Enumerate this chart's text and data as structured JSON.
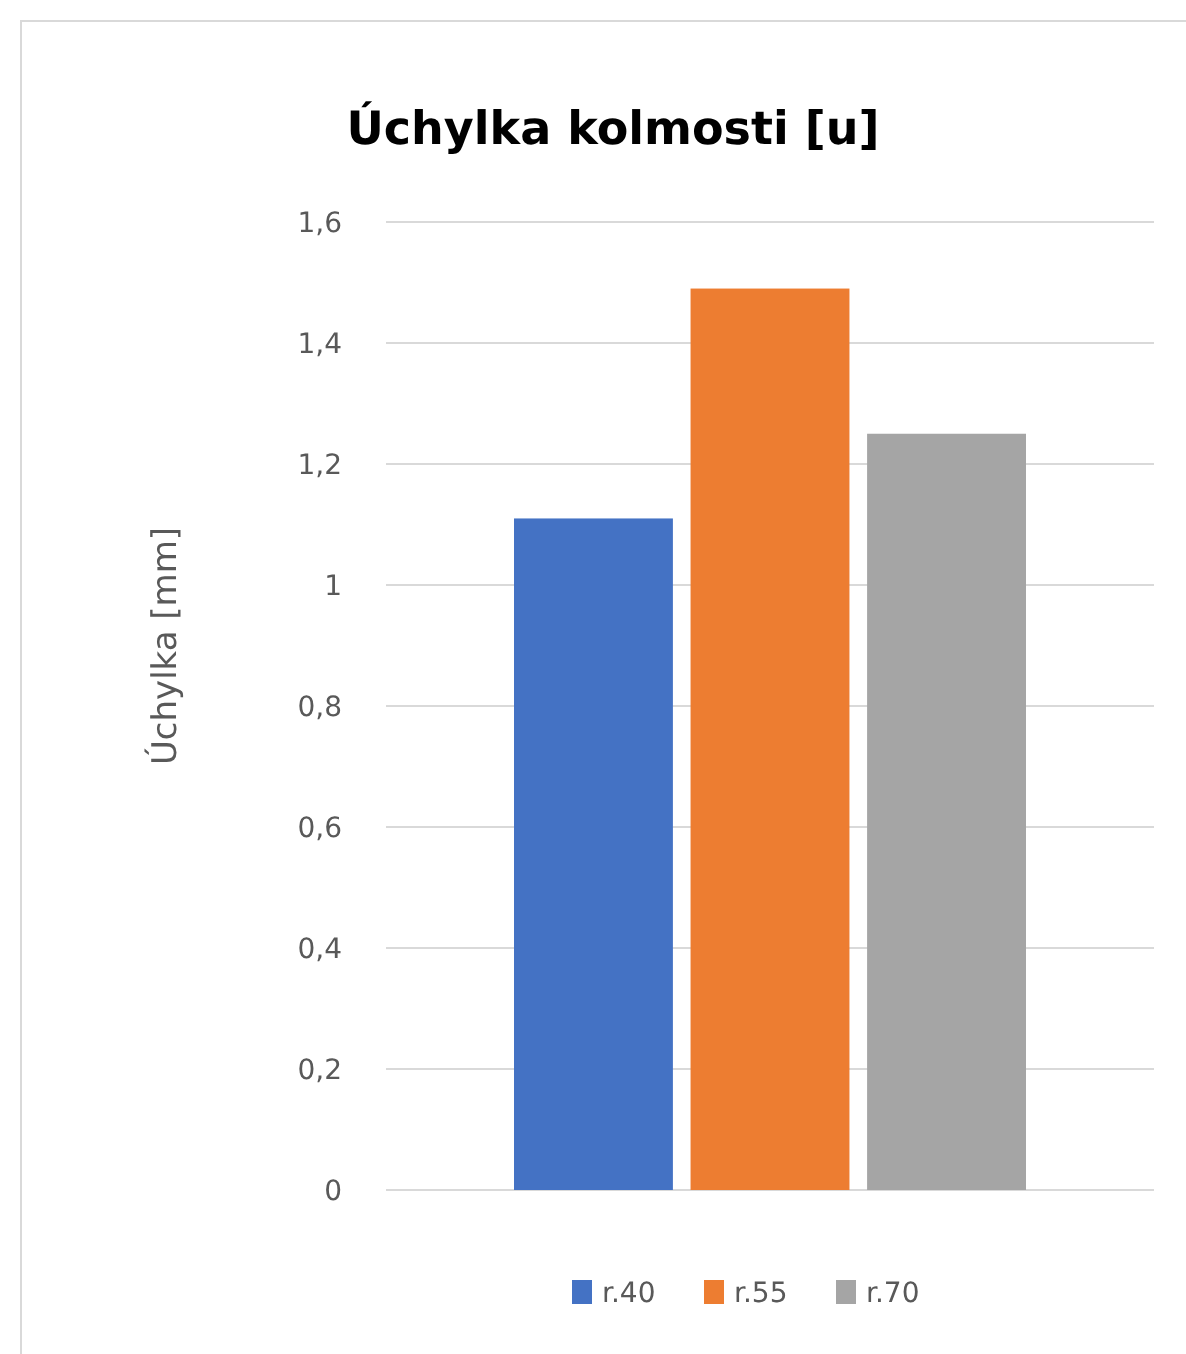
{
  "chart_data": {
    "type": "bar",
    "title": "Úchylka kolmosti [u]",
    "ylabel": "Úchylka [mm]",
    "categories": [
      null
    ],
    "series": [
      {
        "name": "r.40",
        "color": "#4472c4",
        "values": [
          1.11
        ]
      },
      {
        "name": "r.55",
        "color": "#ed7d31",
        "values": [
          1.49
        ]
      },
      {
        "name": "r.70",
        "color": "#a5a5a5",
        "values": [
          1.25
        ]
      }
    ],
    "ylim": [
      0,
      1.6
    ],
    "yticks": [
      0,
      {
        "value": 0.2,
        "label": "0,2"
      },
      {
        "value": 0.4,
        "label": "0,4"
      },
      {
        "value": 0.6,
        "label": "0,6"
      },
      {
        "value": 0.8,
        "label": "0,8"
      },
      1,
      {
        "value": 1.2,
        "label": "1,2"
      },
      {
        "value": 1.4,
        "label": "1,4"
      },
      {
        "value": 1.6,
        "label": "1,6"
      }
    ],
    "grid": "y",
    "legend": "bottom"
  }
}
